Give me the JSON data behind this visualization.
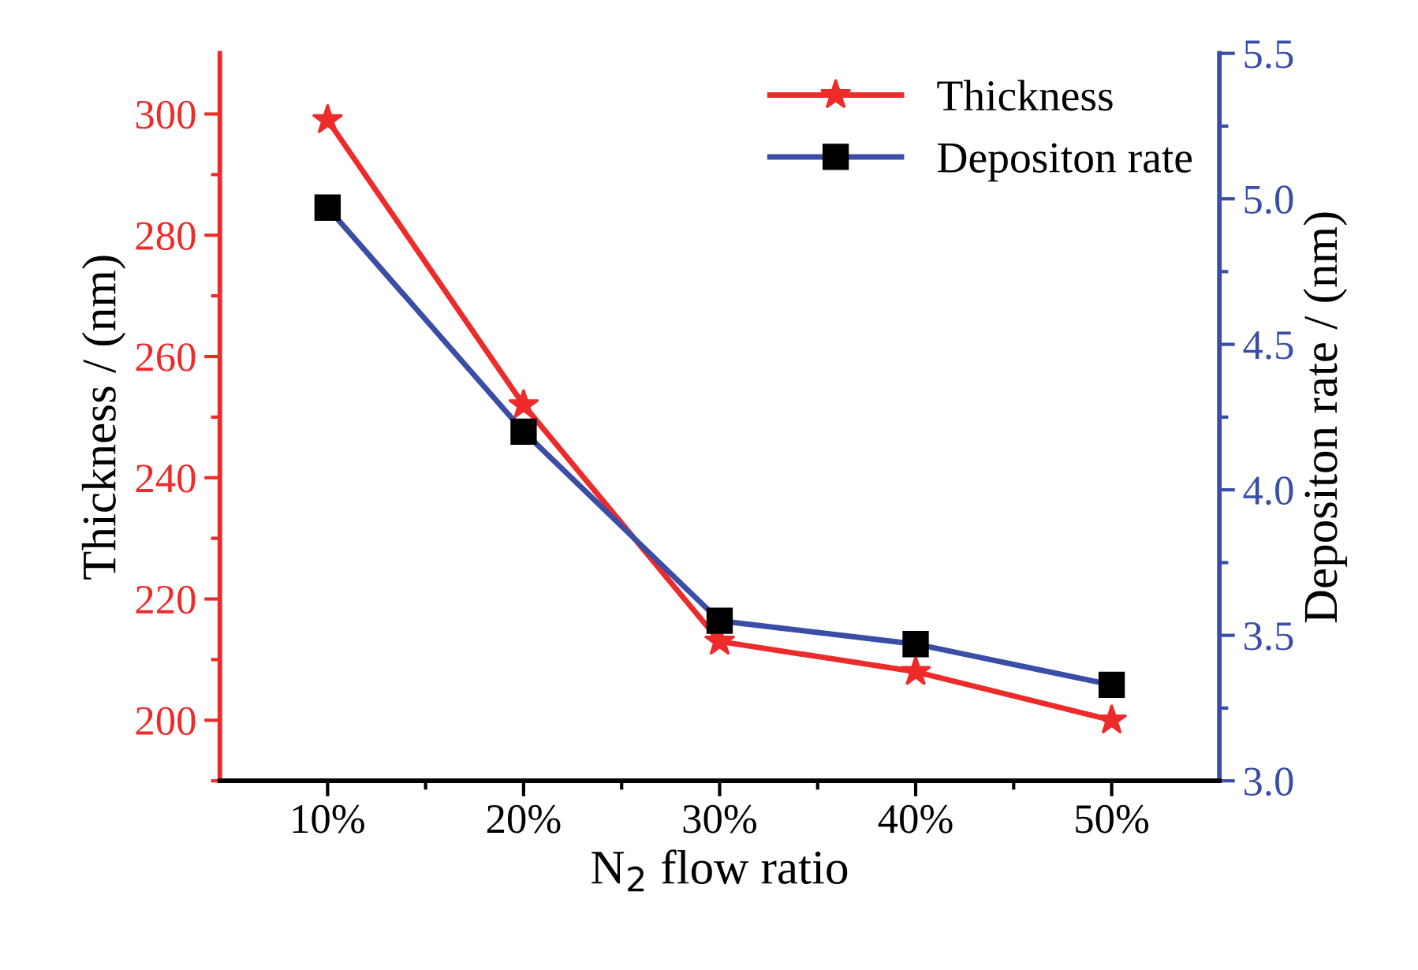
{
  "chart_data": {
    "type": "line",
    "xlabel": "N$_{2}$ flow ratio",
    "ylabel": "Thickness / (nm)",
    "y2label": "Depositon rate / (nm)",
    "categories": [
      "10%",
      "20%",
      "30%",
      "40%",
      "50%"
    ],
    "series": [
      {
        "name": "Thickness",
        "color": "#ee2b2b",
        "marker": "star",
        "values": [
          299,
          252,
          213,
          208,
          200
        ]
      },
      {
        "name": "Depositon rate",
        "color": "#3a4ea8",
        "marker": "square",
        "axis": "y2",
        "values": [
          4.97,
          4.2,
          3.55,
          3.47,
          3.33
        ]
      }
    ],
    "ylim": [
      190,
      310
    ],
    "yticks": [
      200,
      220,
      240,
      260,
      280,
      300
    ],
    "y2lim": [
      3.0,
      5.5
    ],
    "y2ticks": [
      {
        "value": 3,
        "label": "3.0"
      },
      3.5,
      {
        "value": 4,
        "label": "4.0"
      },
      4.5,
      {
        "value": 5,
        "label": "5.0"
      },
      5.5
    ],
    "legend": "top right",
    "grid": false,
    "line_style": "solid"
  }
}
